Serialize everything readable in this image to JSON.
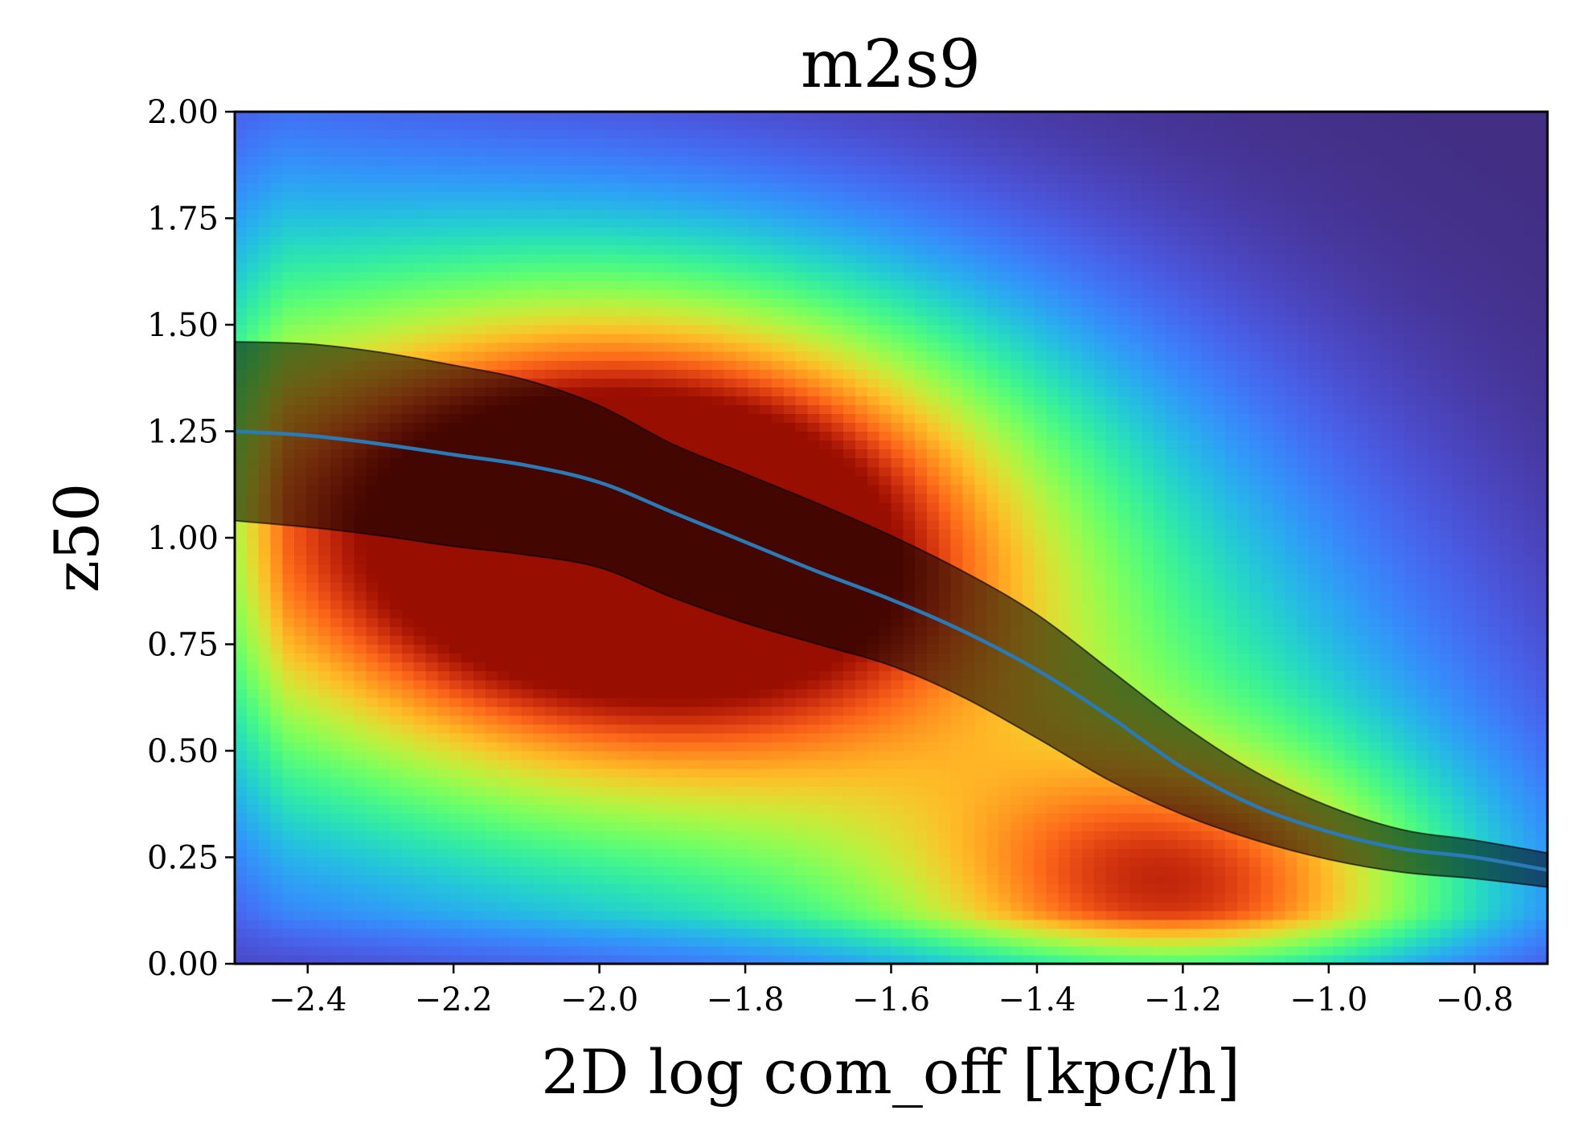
{
  "chart_data": {
    "type": "heatmap",
    "title": "m2s9",
    "xlabel": "2D log com_off [kpc/h]",
    "ylabel": "z50",
    "xlim": [
      -2.5,
      -0.7
    ],
    "ylim": [
      0.0,
      2.0
    ],
    "x_ticks": [
      -2.4,
      -2.2,
      -2.0,
      -1.8,
      -1.6,
      -1.4,
      -1.2,
      -1.0,
      -0.8
    ],
    "x_tick_labels": [
      "−2.4",
      "−2.2",
      "−2.0",
      "−1.8",
      "−1.6",
      "−1.4",
      "−1.2",
      "−1.0",
      "−0.8"
    ],
    "y_ticks": [
      0.0,
      0.25,
      0.5,
      0.75,
      1.0,
      1.25,
      1.5,
      1.75,
      2.0
    ],
    "y_tick_labels": [
      "0.00",
      "0.25",
      "0.50",
      "0.75",
      "1.00",
      "1.25",
      "1.50",
      "1.75",
      "2.00"
    ],
    "colormap": "turbo",
    "density_peaks": [
      {
        "x": -1.93,
        "y": 1.03,
        "relative_density": 1.0
      },
      {
        "x": -1.2,
        "y": 0.17,
        "relative_density": 0.55
      }
    ],
    "series": [
      {
        "kind": "median_line",
        "color": "#2a7ab8",
        "x": [
          -2.5,
          -2.4,
          -2.3,
          -2.2,
          -2.1,
          -2.0,
          -1.9,
          -1.8,
          -1.7,
          -1.6,
          -1.5,
          -1.4,
          -1.3,
          -1.2,
          -1.1,
          -1.0,
          -0.9,
          -0.8,
          -0.7
        ],
        "y": [
          1.25,
          1.24,
          1.22,
          1.195,
          1.17,
          1.13,
          1.06,
          0.99,
          0.92,
          0.855,
          0.78,
          0.69,
          0.58,
          0.46,
          0.37,
          0.31,
          0.27,
          0.25,
          0.22
        ]
      },
      {
        "kind": "scatter_band",
        "color": "#000000",
        "x": [
          -2.5,
          -2.4,
          -2.3,
          -2.2,
          -2.1,
          -2.0,
          -1.9,
          -1.8,
          -1.7,
          -1.6,
          -1.5,
          -1.4,
          -1.3,
          -1.2,
          -1.1,
          -1.0,
          -0.9,
          -0.8,
          -0.7
        ],
        "lower": [
          1.04,
          1.025,
          1.005,
          0.98,
          0.96,
          0.93,
          0.86,
          0.8,
          0.75,
          0.7,
          0.625,
          0.53,
          0.43,
          0.35,
          0.29,
          0.245,
          0.215,
          0.2,
          0.18
        ],
        "upper": [
          1.46,
          1.455,
          1.435,
          1.405,
          1.37,
          1.31,
          1.22,
          1.15,
          1.08,
          1.005,
          0.92,
          0.82,
          0.69,
          0.56,
          0.45,
          0.37,
          0.315,
          0.29,
          0.26
        ]
      }
    ]
  }
}
